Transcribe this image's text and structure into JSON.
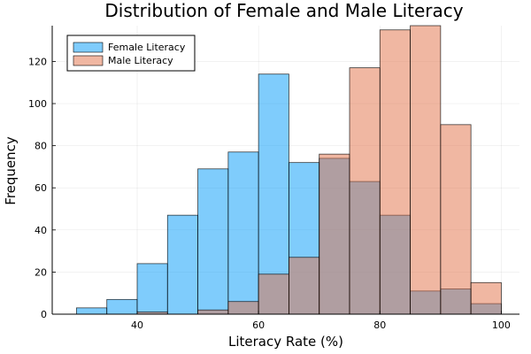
{
  "chart_data": {
    "type": "bar",
    "title": "Distribution of Female and Male Literacy",
    "xlabel": "Literacy Rate (%)",
    "ylabel": "Frequency",
    "xlim": [
      26,
      103
    ],
    "ylim": [
      0,
      137
    ],
    "xticks": [
      40,
      60,
      80,
      100
    ],
    "yticks": [
      0,
      20,
      40,
      60,
      80,
      100,
      120
    ],
    "grid": true,
    "legend_position": "top-left",
    "bin_edges": [
      30,
      35,
      40,
      45,
      50,
      55,
      60,
      65,
      70,
      75,
      80,
      85,
      90,
      95,
      100
    ],
    "series": [
      {
        "name": "Female Literacy",
        "color": "#009AFA",
        "opacity": 0.5,
        "values": [
          3,
          7,
          24,
          47,
          69,
          77,
          114,
          72,
          74,
          63,
          47,
          11,
          12,
          5
        ]
      },
      {
        "name": "Male Literacy",
        "color": "#E26F46",
        "opacity": 0.5,
        "values": [
          0,
          0,
          1,
          0,
          2,
          6,
          19,
          27,
          76,
          117,
          135,
          137,
          90,
          15
        ]
      }
    ]
  }
}
